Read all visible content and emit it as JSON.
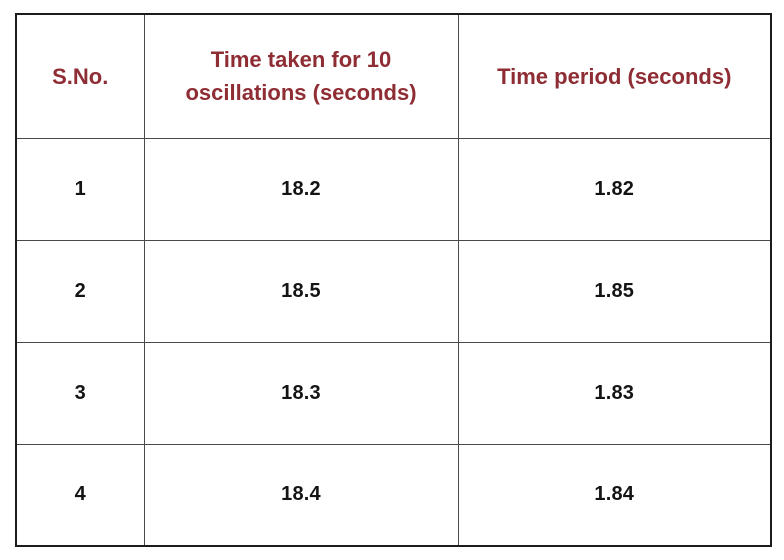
{
  "table": {
    "columns": [
      {
        "label": "S.No."
      },
      {
        "label": "Time taken for 10 oscillations (seconds)"
      },
      {
        "label": "Time period (seconds)"
      }
    ],
    "rows": [
      {
        "sno": "1",
        "time_10_oscillations": "18.2",
        "time_period": "1.82"
      },
      {
        "sno": "2",
        "time_10_oscillations": "18.5",
        "time_period": "1.85"
      },
      {
        "sno": "3",
        "time_10_oscillations": "18.3",
        "time_period": "1.83"
      },
      {
        "sno": "4",
        "time_10_oscillations": "18.4",
        "time_period": "1.84"
      }
    ]
  },
  "colors": {
    "header_text": "#8e2d33",
    "body_text": "#141414",
    "grid_border": "#4a4a4a",
    "outer_border": "#1c1c1c",
    "background": "#ffffff"
  }
}
